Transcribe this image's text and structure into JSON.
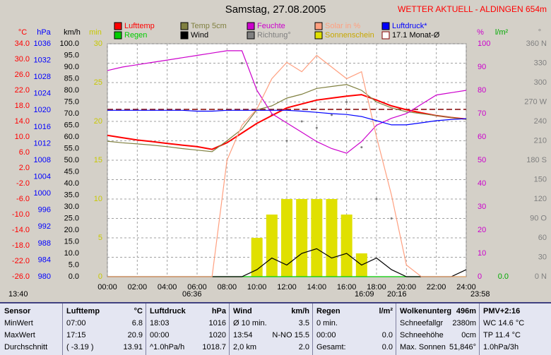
{
  "chart_data": {
    "type": "line",
    "title": "Samstag, 27.08.2005",
    "subtitle": "WETTER AKTUELL - ALDINGEN 654m",
    "x": [
      0,
      1,
      2,
      3,
      4,
      5,
      6,
      7,
      8,
      9,
      10,
      11,
      12,
      13,
      14,
      15,
      16,
      17,
      18,
      19,
      20,
      21,
      22,
      23,
      24
    ],
    "xlim": [
      0,
      24
    ],
    "xticks": [
      {
        "value": 0,
        "label": "00:00"
      },
      {
        "value": 2,
        "label": "02:00"
      },
      {
        "value": 4,
        "label": "04:00"
      },
      {
        "value": 6,
        "label": "06:00"
      },
      {
        "value": 8,
        "label": "08:00"
      },
      {
        "value": 10,
        "label": "10:00"
      },
      {
        "value": 12,
        "label": "12:00"
      },
      {
        "value": 14,
        "label": "14:00"
      },
      {
        "value": 16,
        "label": "16:00"
      },
      {
        "value": 18,
        "label": "18:00"
      },
      {
        "value": 20,
        "label": "20:00"
      },
      {
        "value": 22,
        "label": "22:00"
      },
      {
        "value": 24,
        "label": "24:00"
      }
    ],
    "axes": [
      {
        "label": "°C",
        "color": "#ff0000",
        "lim": [
          -26,
          34
        ],
        "ticks": [
          {
            "value": 34,
            "label": "34.0"
          },
          {
            "value": 30,
            "label": "30.0"
          },
          {
            "value": 26,
            "label": "26.0"
          },
          {
            "value": 22,
            "label": "22.0"
          },
          {
            "value": 18,
            "label": "18.0"
          },
          {
            "value": 14,
            "label": "14.0"
          },
          {
            "value": 10,
            "label": "10.0"
          },
          {
            "value": 6,
            "label": "6.0"
          },
          {
            "value": 2,
            "label": "2.0"
          },
          {
            "value": -2,
            "label": "-2.0"
          },
          {
            "value": -6,
            "label": "-6.0"
          },
          {
            "value": -10,
            "label": "-10.0"
          },
          {
            "value": -14,
            "label": "-14.0"
          },
          {
            "value": -18,
            "label": "-18.0"
          },
          {
            "value": -22,
            "label": "-22.0"
          },
          {
            "value": -26,
            "label": "-26.0"
          }
        ]
      },
      {
        "label": "hPa",
        "color": "#0000ff",
        "lim": [
          980,
          1036
        ],
        "ticks": [
          1036,
          1032,
          1028,
          1024,
          1020,
          1016,
          1012,
          1008,
          1004,
          1000,
          996,
          992,
          988,
          984,
          980
        ]
      },
      {
        "label": "km/h",
        "color": "#000000",
        "lim": [
          0,
          100
        ],
        "ticks": [
          {
            "value": 100,
            "label": "100.0"
          },
          {
            "value": 95,
            "label": "95.0"
          },
          {
            "value": 90,
            "label": "90.0"
          },
          {
            "value": 85,
            "label": "85.0"
          },
          {
            "value": 80,
            "label": "80.0"
          },
          {
            "value": 75,
            "label": "75.0"
          },
          {
            "value": 70,
            "label": "70.0"
          },
          {
            "value": 65,
            "label": "65.0"
          },
          {
            "value": 60,
            "label": "60.0"
          },
          {
            "value": 55,
            "label": "55.0"
          },
          {
            "value": 50,
            "label": "50.0"
          },
          {
            "value": 45,
            "label": "45.0"
          },
          {
            "value": 40,
            "label": "40.0"
          },
          {
            "value": 35,
            "label": "35.0"
          },
          {
            "value": 30,
            "label": "30.0"
          },
          {
            "value": 25,
            "label": "25.0"
          },
          {
            "value": 20,
            "label": "20.0"
          },
          {
            "value": 15,
            "label": "15.0"
          },
          {
            "value": 10,
            "label": "10.0"
          },
          {
            "value": 5,
            "label": "5.0"
          },
          {
            "value": 0,
            "label": "0.0"
          }
        ]
      },
      {
        "label": "min",
        "color": "#c8c800",
        "lim": [
          0,
          30
        ],
        "ticks": [
          30,
          25,
          20,
          15,
          10,
          5,
          0
        ]
      },
      {
        "label": "%",
        "color": "#cc00cc",
        "lim": [
          0,
          100
        ],
        "ticks": [
          100,
          90,
          80,
          70,
          60,
          50,
          40,
          30,
          20,
          10,
          0
        ]
      },
      {
        "label": "l/m²",
        "color": "#00aa00",
        "lim": [
          0,
          10
        ],
        "ticks": [
          {
            "value": 0,
            "label": "0.0"
          }
        ]
      },
      {
        "label": "°",
        "color": "#808080",
        "lim": [
          0,
          360
        ],
        "ticks": [
          {
            "value": 360,
            "label": "360 N"
          },
          330,
          300,
          {
            "value": 270,
            "label": "270 W"
          },
          240,
          210,
          {
            "value": 180,
            "label": "180 S"
          },
          150,
          120,
          {
            "value": 90,
            "label": "90 O"
          },
          60,
          30,
          {
            "value": 0,
            "label": "0 N"
          }
        ]
      }
    ],
    "grid": true,
    "series": [
      {
        "name": "Lufttemp",
        "color": "#ff0000",
        "axis": 0,
        "kind": "line",
        "values": [
          10.4,
          9.8,
          9.2,
          8.8,
          8.3,
          7.9,
          7.5,
          6.8,
          8.5,
          11,
          13.5,
          15.5,
          17.5,
          18.5,
          19.5,
          20,
          20.5,
          20.9,
          19.5,
          18,
          17,
          16.2,
          15.5,
          15,
          14.6
        ]
      },
      {
        "name": "Regen",
        "color": "#00cc00",
        "axis": 5,
        "kind": "line",
        "values": [
          0,
          0,
          0,
          0,
          0,
          0,
          0,
          0,
          0,
          0,
          0,
          0,
          0,
          0,
          0,
          0,
          0,
          0,
          0,
          0,
          0,
          0,
          0,
          0,
          0
        ]
      },
      {
        "name": "Temp 5cm",
        "color": "#808040",
        "axis": 0,
        "kind": "line",
        "values": [
          8.9,
          8.5,
          8.2,
          7.9,
          7.5,
          7,
          6.6,
          6.2,
          9,
          12,
          17,
          18,
          20,
          21,
          22.5,
          23,
          23.5,
          22,
          19,
          17.5,
          16.5,
          16,
          15.5,
          15,
          14.5
        ]
      },
      {
        "name": "Wind",
        "color": "#000000",
        "axis": 2,
        "kind": "line",
        "values": [
          0,
          0,
          0,
          0,
          0,
          0,
          0,
          0,
          0,
          0,
          3,
          8,
          5,
          10,
          12,
          8,
          10,
          5,
          8,
          3,
          0,
          0,
          0,
          0,
          3
        ]
      },
      {
        "name": "Feuchte",
        "color": "#cc00cc",
        "axis": 4,
        "kind": "line",
        "values": [
          88.5,
          90,
          91,
          92,
          93,
          94,
          95,
          96,
          97,
          97,
          80,
          70,
          66,
          62,
          58,
          55,
          53,
          58,
          65,
          68,
          70,
          74,
          78,
          79,
          80
        ]
      },
      {
        "name": "Richtung°",
        "color": "#808080",
        "axis": 6,
        "kind": "dots",
        "values": [
          null,
          null,
          null,
          null,
          null,
          null,
          null,
          null,
          null,
          330,
          300,
          250,
          210,
          240,
          230,
          250,
          270,
          200,
          120,
          90,
          null,
          null,
          null,
          null,
          null
        ]
      },
      {
        "name": "Solar in %",
        "color": "#ffa080",
        "axis": 4,
        "kind": "line",
        "values": [
          0,
          0,
          0,
          0,
          0,
          0,
          0,
          0,
          50,
          65,
          72,
          85,
          92,
          88,
          95,
          90,
          85,
          88,
          60,
          35,
          5,
          0,
          0,
          0,
          0
        ]
      },
      {
        "name": "Sonnenschein",
        "color": "#e0e000",
        "axis": 3,
        "kind": "bars",
        "values": [
          0,
          0,
          0,
          0,
          0,
          0,
          0,
          0,
          0,
          0,
          5,
          8,
          10,
          10,
          10,
          10,
          8,
          3,
          0,
          0,
          0,
          0,
          0,
          0,
          0
        ]
      },
      {
        "name": "Luftdruck*",
        "color": "#0000ff",
        "axis": 1,
        "kind": "line",
        "values": [
          1020,
          1020,
          1020,
          1020,
          1020,
          1020,
          1019.8,
          1019.8,
          1020,
          1020,
          1020,
          1020,
          1020,
          1019.8,
          1019.5,
          1019.2,
          1019,
          1018.5,
          1017.5,
          1016.5,
          1016.5,
          1017,
          1017.5,
          1017.8,
          1018
        ]
      }
    ],
    "monthly_avg": {
      "label": "17.1 Monat-Ø",
      "value": 17.1,
      "axis": 0,
      "color": "#800000"
    },
    "annotations": [
      "13:40",
      "06:36",
      "16:09",
      "20:16",
      "23:58"
    ]
  },
  "table": {
    "rows": [
      [
        "Sensor",
        [
          "Lufttemp",
          "°C"
        ],
        [
          "Luftdruck",
          "hPa"
        ],
        [
          "Wind",
          "km/h"
        ],
        [
          "Regen",
          "l/m²"
        ],
        [
          "Wolkenunterg",
          "496m"
        ],
        "PMV+2:16"
      ],
      [
        "MinWert",
        [
          "07:00",
          "6.8"
        ],
        [
          "18:03",
          "1016"
        ],
        [
          "Ø 10 min.",
          "3.5"
        ],
        "0 min.",
        [
          "Schneefallgr",
          "2380m"
        ],
        "WC 14.6 °C"
      ],
      [
        "MaxWert",
        [
          "17:15",
          "20.9"
        ],
        [
          "00:00",
          "1020"
        ],
        [
          "13:54",
          "N-NO 15.5"
        ],
        [
          "00:00",
          "0.0"
        ],
        [
          "Schneehöhe",
          "0cm"
        ],
        "TP 11.4 °C"
      ],
      [
        "Durchschnitt",
        [
          "( -3.19 )",
          "13.91"
        ],
        [
          "^1.0hPa/h",
          "1018.7"
        ],
        [
          "2,0 km",
          "2.0"
        ],
        [
          "Gesamt:",
          "0.0"
        ],
        [
          "Max. Sonnen",
          "51,846°"
        ],
        "1.0hPa/3h"
      ]
    ]
  }
}
